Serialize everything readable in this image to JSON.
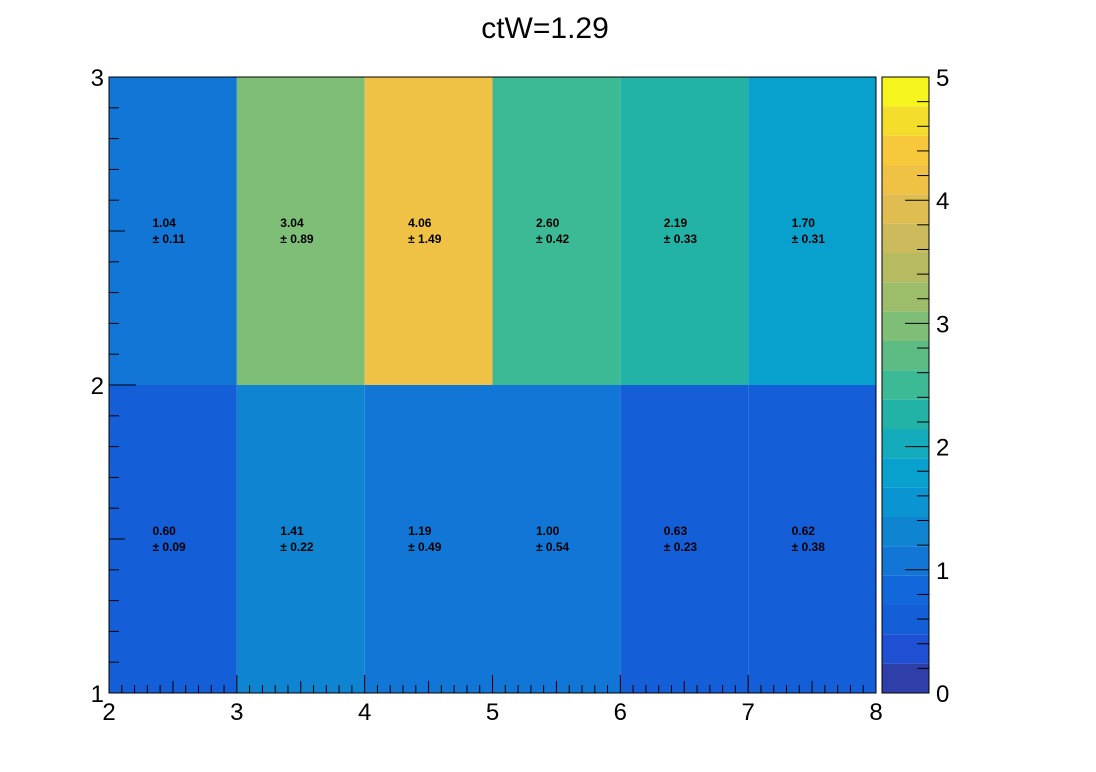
{
  "chart_data": {
    "type": "heatmap",
    "title": "ctW=1.29",
    "x_edges": [
      2,
      3,
      4,
      5,
      6,
      7,
      8
    ],
    "y_edges": [
      1,
      2,
      3
    ],
    "x_ticks": [
      "2",
      "3",
      "4",
      "5",
      "6",
      "7",
      "8"
    ],
    "y_ticks": [
      "1",
      "2",
      "3"
    ],
    "z_range": [
      0,
      5
    ],
    "z_ticks": [
      "0",
      "1",
      "2",
      "3",
      "4",
      "5"
    ],
    "colormap": "parula",
    "rows": [
      {
        "y_bin": [
          2,
          3
        ],
        "values": [
          1.04,
          3.04,
          4.06,
          2.6,
          2.19,
          1.7
        ],
        "value_labels": [
          "1.04",
          "3.04",
          "4.06",
          "2.60",
          "2.19",
          "1.70"
        ],
        "error_labels": [
          "± 0.11",
          "± 0.89",
          "± 1.49",
          "± 0.42",
          "± 0.33",
          "± 0.31"
        ]
      },
      {
        "y_bin": [
          1,
          2
        ],
        "values": [
          0.6,
          1.41,
          1.19,
          1.0,
          0.63,
          0.62
        ],
        "value_labels": [
          "0.60",
          "1.41",
          "1.19",
          "1.00",
          "0.63",
          "0.62"
        ],
        "error_labels": [
          "± 0.09",
          "± 0.22",
          "± 0.49",
          "± 0.54",
          "± 0.23",
          "± 0.38"
        ]
      }
    ],
    "palette_colors": [
      "#2f3faa",
      "#1f4fd3",
      "#145ed8",
      "#1268db",
      "#1276d7",
      "#0f85d2",
      "#0a94d2",
      "#08a1ce",
      "#14abbc",
      "#23b3a6",
      "#3bba95",
      "#5dbc84",
      "#7fbe76",
      "#9dbd6b",
      "#b6bb62",
      "#cbbb5c",
      "#dfbd51",
      "#efc246",
      "#f7c93a",
      "#f5de2b",
      "#f5f41c"
    ]
  }
}
